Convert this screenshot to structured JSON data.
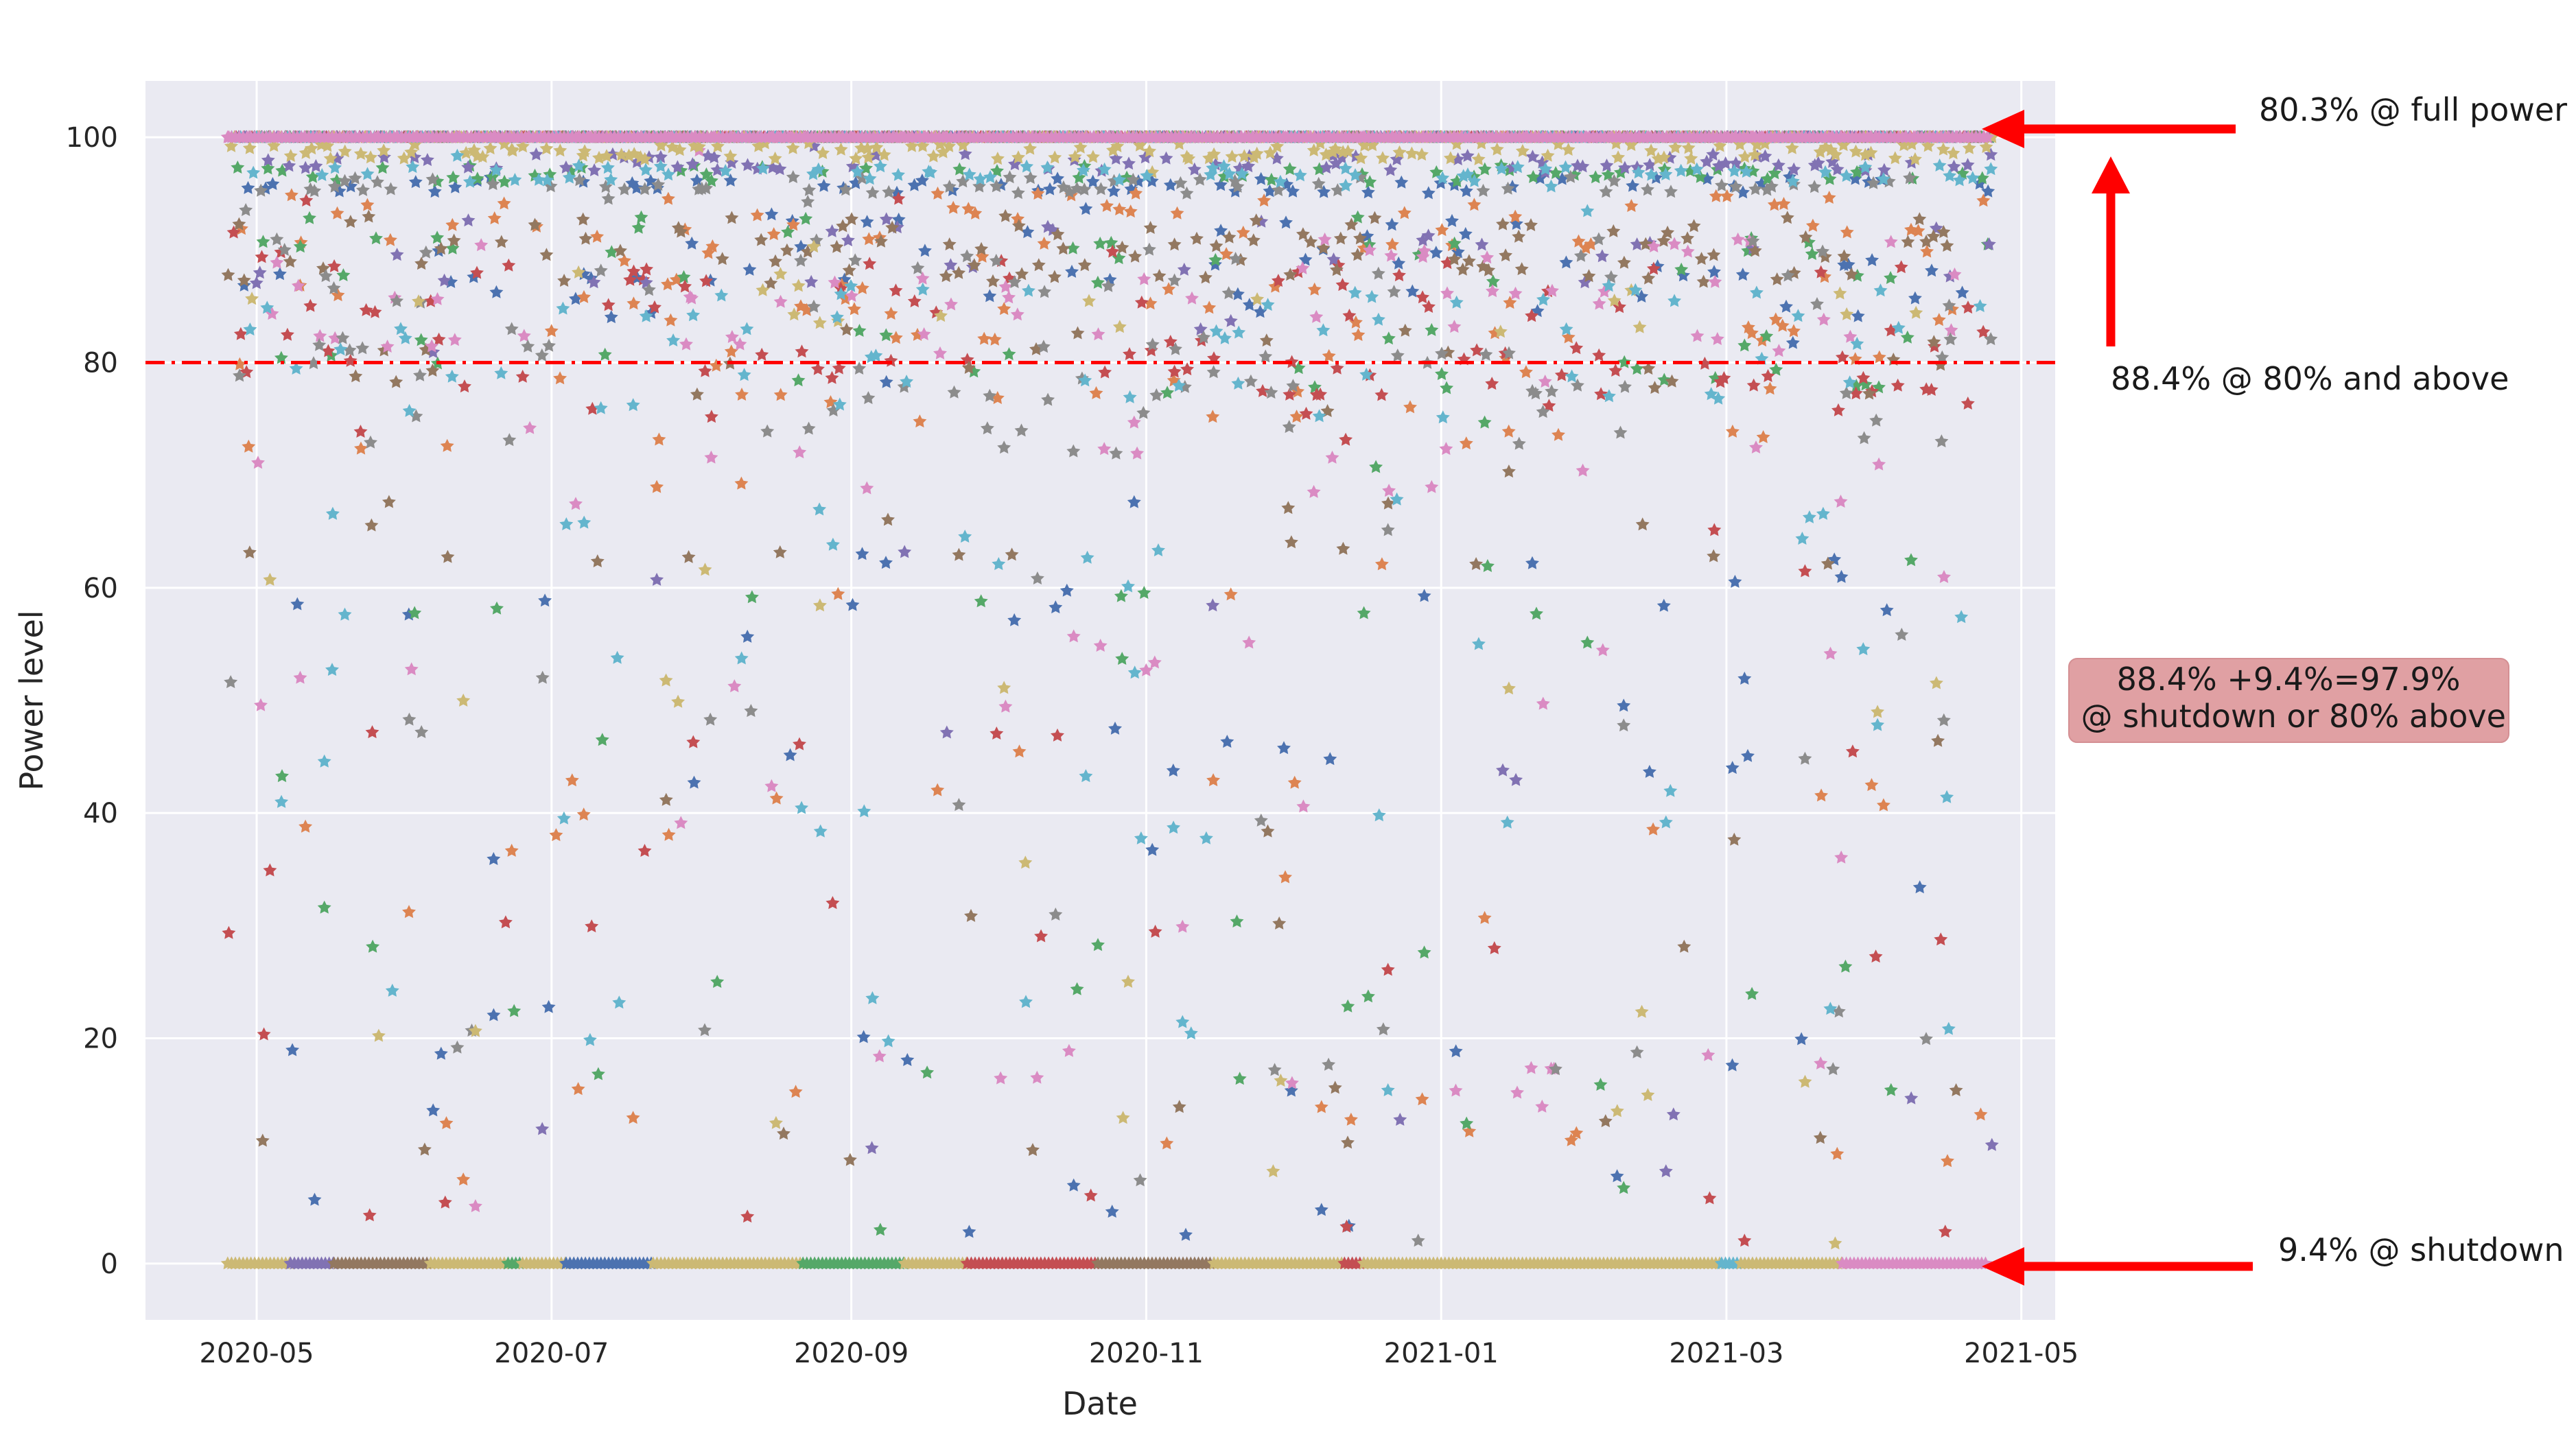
{
  "chart_data": {
    "type": "scatter",
    "marker": "star",
    "title": "",
    "xlabel": "Date",
    "ylabel": "Power level",
    "xlim": [
      "2020-04-08",
      "2021-05-08"
    ],
    "ylim": [
      -5,
      105
    ],
    "x_ticks": [
      "2020-05-01",
      "2020-07-01",
      "2020-09-01",
      "2020-11-01",
      "2021-01-01",
      "2021-03-01",
      "2021-05-01"
    ],
    "x_tick_labels": [
      "2020-05",
      "2020-07",
      "2020-09",
      "2020-11",
      "2021-01",
      "2021-03",
      "2021-05"
    ],
    "y_ticks": [
      0,
      20,
      40,
      60,
      80,
      100
    ],
    "y_tick_labels": [
      "0",
      "20",
      "40",
      "60",
      "80",
      "100"
    ],
    "grid": true,
    "background": "#eaeaf2",
    "palette": [
      "#4c72b0",
      "#dd8452",
      "#55a868",
      "#c44e52",
      "#8172b3",
      "#937860",
      "#da8bc3",
      "#8c8c8c",
      "#ccb974",
      "#64b5cd"
    ],
    "threshold_line": {
      "y": 80,
      "color": "#ff0000",
      "style": "dash-dot"
    },
    "date_range": [
      "2020-04-25",
      "2021-04-24"
    ],
    "series": [
      {
        "color_index": 0,
        "bands": [
          [
            100,
            0.7
          ],
          [
            95,
            0.25
          ],
          [
            87,
            0.15
          ],
          [
            90,
            0.12
          ],
          [
            0,
            0.07
          ],
          [
            60,
            0.04
          ],
          [
            45,
            0.03
          ],
          [
            20,
            0.02
          ],
          [
            5,
            0.02
          ]
        ]
      },
      {
        "color_index": 1,
        "bands": [
          [
            100,
            0.72
          ],
          [
            92,
            0.2
          ],
          [
            85,
            0.12
          ],
          [
            80,
            0.08
          ],
          [
            75,
            0.06
          ],
          [
            0,
            0.02
          ],
          [
            40,
            0.03
          ],
          [
            12,
            0.02
          ]
        ]
      },
      {
        "color_index": 2,
        "bands": [
          [
            100,
            0.74
          ],
          [
            96,
            0.22
          ],
          [
            90,
            0.12
          ],
          [
            80,
            0.08
          ],
          [
            0,
            0.1
          ],
          [
            60,
            0.03
          ],
          [
            25,
            0.02
          ],
          [
            15,
            0.02
          ]
        ]
      },
      {
        "color_index": 3,
        "bands": [
          [
            100,
            0.72
          ],
          [
            87,
            0.2
          ],
          [
            80,
            0.1
          ],
          [
            78,
            0.08
          ],
          [
            0,
            0.08
          ],
          [
            48,
            0.03
          ],
          [
            30,
            0.02
          ],
          [
            5,
            0.02
          ]
        ]
      },
      {
        "color_index": 4,
        "bands": [
          [
            100,
            0.8
          ],
          [
            97,
            0.3
          ],
          [
            90,
            0.1
          ],
          [
            0,
            0.05
          ],
          [
            45,
            0.02
          ],
          [
            12,
            0.02
          ]
        ]
      },
      {
        "color_index": 5,
        "bands": [
          [
            100,
            0.7
          ],
          [
            90,
            0.35
          ],
          [
            80,
            0.06
          ],
          [
            65,
            0.05
          ],
          [
            0,
            0.1
          ],
          [
            40,
            0.02
          ],
          [
            13,
            0.03
          ]
        ]
      },
      {
        "color_index": 6,
        "bands": [
          [
            100,
            0.95
          ],
          [
            88,
            0.1
          ],
          [
            83,
            0.1
          ],
          [
            70,
            0.06
          ],
          [
            52,
            0.03
          ],
          [
            0,
            0.08
          ],
          [
            16,
            0.03
          ]
        ]
      },
      {
        "color_index": 7,
        "bands": [
          [
            100,
            0.65
          ],
          [
            95,
            0.25
          ],
          [
            88,
            0.12
          ],
          [
            80,
            0.1
          ],
          [
            75,
            0.08
          ],
          [
            0,
            0.02
          ],
          [
            50,
            0.02
          ],
          [
            20,
            0.02
          ]
        ]
      },
      {
        "color_index": 8,
        "bands": [
          [
            100,
            0.6
          ],
          [
            98,
            0.5
          ],
          [
            85,
            0.06
          ],
          [
            0,
            0.45
          ],
          [
            50,
            0.02
          ],
          [
            15,
            0.02
          ]
        ]
      },
      {
        "color_index": 9,
        "bands": [
          [
            100,
            0.65
          ],
          [
            96,
            0.22
          ],
          [
            84,
            0.12
          ],
          [
            78,
            0.08
          ],
          [
            65,
            0.05
          ],
          [
            55,
            0.04
          ],
          [
            40,
            0.04
          ],
          [
            0,
            0.03
          ],
          [
            22,
            0.02
          ]
        ]
      }
    ],
    "zero_band_colors": [
      {
        "from": "2020-04-25",
        "to": "2020-05-08",
        "color_index": 8
      },
      {
        "from": "2020-05-08",
        "to": "2020-05-17",
        "color_index": 4
      },
      {
        "from": "2020-05-17",
        "to": "2020-06-06",
        "color_index": 5
      },
      {
        "from": "2020-06-06",
        "to": "2020-06-22",
        "color_index": 8
      },
      {
        "from": "2020-06-22",
        "to": "2020-06-25",
        "color_index": 2
      },
      {
        "from": "2020-06-25",
        "to": "2020-07-04",
        "color_index": 8
      },
      {
        "from": "2020-07-04",
        "to": "2020-07-22",
        "color_index": 0
      },
      {
        "from": "2020-07-22",
        "to": "2020-08-22",
        "color_index": 8
      },
      {
        "from": "2020-08-22",
        "to": "2020-09-12",
        "color_index": 2
      },
      {
        "from": "2020-09-12",
        "to": "2020-09-25",
        "color_index": 8
      },
      {
        "from": "2020-09-25",
        "to": "2020-10-22",
        "color_index": 3
      },
      {
        "from": "2020-10-22",
        "to": "2020-11-15",
        "color_index": 5
      },
      {
        "from": "2020-11-15",
        "to": "2020-12-12",
        "color_index": 8
      },
      {
        "from": "2020-12-12",
        "to": "2020-12-16",
        "color_index": 3
      },
      {
        "from": "2020-12-16",
        "to": "2021-02-28",
        "color_index": 8
      },
      {
        "from": "2021-02-28",
        "to": "2021-03-04",
        "color_index": 9
      },
      {
        "from": "2021-03-04",
        "to": "2021-03-25",
        "color_index": 8
      },
      {
        "from": "2021-03-25",
        "to": "2021-04-24",
        "color_index": 6
      }
    ],
    "annotations": [
      {
        "text": "80.3% @ full power",
        "arrow_to": [
          "2021-04-25",
          100
        ]
      },
      {
        "text": "88.4% @ 80% and above",
        "arrow_to": [
          "2021-05-19",
          99
        ]
      },
      {
        "text": "9.4% @ shutdown",
        "arrow_to": [
          "2021-04-25",
          0
        ]
      }
    ],
    "summary_box": {
      "lines": [
        "88.4% +9.4%=97.9%",
        " @ shutdown or 80% above"
      ],
      "color": "#e0a0a3"
    }
  }
}
